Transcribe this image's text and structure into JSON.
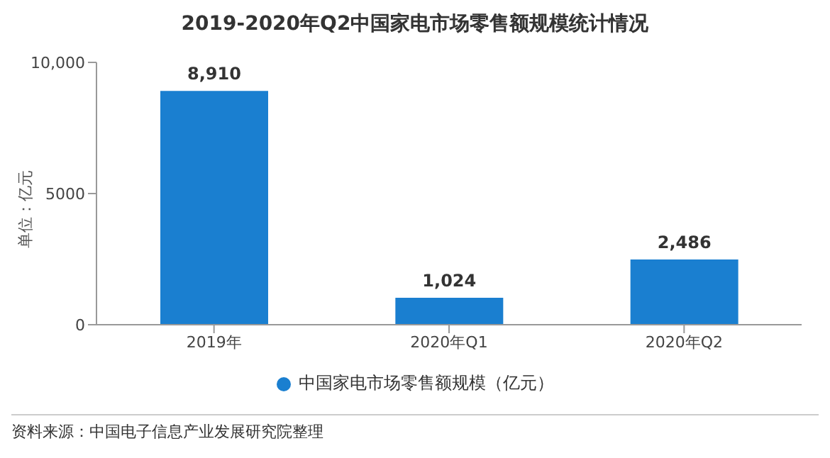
{
  "chart_data": {
    "type": "bar",
    "title": "2019-2020年Q2中国家电市场零售额规模统计情况",
    "ylabel": "单位：亿元",
    "categories": [
      "2019年",
      "2020年Q1",
      "2020年Q2"
    ],
    "series": [
      {
        "name": "中国家电市场零售额规模（亿元）",
        "color": "#1a7fd0",
        "values": [
          8910,
          1024,
          2486
        ],
        "value_labels": [
          "8,910",
          "1,024",
          "2,486"
        ]
      }
    ],
    "ylim": [
      0,
      10000
    ],
    "yticks": [
      0,
      5000,
      {
        "value": 10000,
        "label": "10,000"
      }
    ],
    "grid": false,
    "legend": "bottom",
    "annotations": [
      "资料来源：中国电子信息产业发展研究院整理"
    ]
  }
}
